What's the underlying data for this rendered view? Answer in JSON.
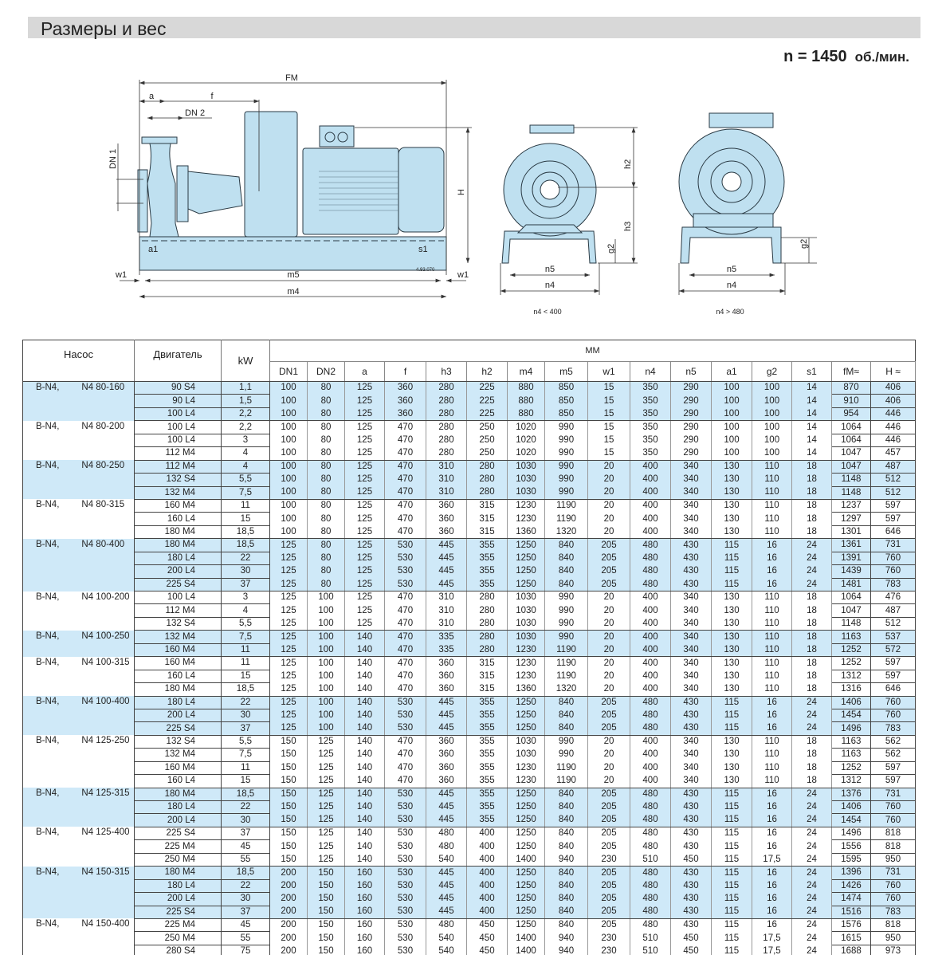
{
  "header": {
    "title": "Размеры и вес",
    "speed": "n = 1450",
    "speed_unit": "об./мин."
  },
  "drawing": {
    "labels": {
      "FM": "FM",
      "a": "a",
      "f": "f",
      "DN2": "DN 2",
      "DN1": "DN 1",
      "H": "H",
      "a1": "a1",
      "s1": "s1",
      "w1": "w1",
      "m5": "m5",
      "m4": "m4",
      "code": "4.93.070",
      "h2": "h2",
      "h3": "h3",
      "g2": "g2",
      "n5": "n5",
      "n4": "n4",
      "cap_front": "n4 < 400",
      "cap_rear": "n4 > 480"
    },
    "colors": {
      "fill": "#bfe0f0",
      "stroke": "#2a3a44"
    }
  },
  "table": {
    "headers": {
      "pump": "Насос",
      "motor": "Двигатель",
      "kw": "kW",
      "mm": "MM"
    },
    "columns": [
      "DN1",
      "DN2",
      "a",
      "f",
      "h3",
      "h2",
      "m4",
      "m5",
      "w1",
      "n4",
      "n5",
      "a1",
      "g2",
      "s1",
      "fM≈",
      "H ≈"
    ],
    "shade_color": "#cfe9f8",
    "groups": [
      {
        "series": "B-N4,",
        "model": "N4 80-160",
        "rows": [
          [
            "90 S4",
            "1,1",
            "100",
            "80",
            "125",
            "360",
            "280",
            "225",
            "880",
            "850",
            "15",
            "350",
            "290",
            "100",
            "100",
            "14",
            "870",
            "406"
          ],
          [
            "90 L4",
            "1,5",
            "100",
            "80",
            "125",
            "360",
            "280",
            "225",
            "880",
            "850",
            "15",
            "350",
            "290",
            "100",
            "100",
            "14",
            "910",
            "406"
          ],
          [
            "100 L4",
            "2,2",
            "100",
            "80",
            "125",
            "360",
            "280",
            "225",
            "880",
            "850",
            "15",
            "350",
            "290",
            "100",
            "100",
            "14",
            "954",
            "446"
          ]
        ]
      },
      {
        "series": "B-N4,",
        "model": "N4 80-200",
        "rows": [
          [
            "100 L4",
            "2,2",
            "100",
            "80",
            "125",
            "470",
            "280",
            "250",
            "1020",
            "990",
            "15",
            "350",
            "290",
            "100",
            "100",
            "14",
            "1064",
            "446"
          ],
          [
            "100 L4",
            "3",
            "100",
            "80",
            "125",
            "470",
            "280",
            "250",
            "1020",
            "990",
            "15",
            "350",
            "290",
            "100",
            "100",
            "14",
            "1064",
            "446"
          ],
          [
            "112 M4",
            "4",
            "100",
            "80",
            "125",
            "470",
            "280",
            "250",
            "1020",
            "990",
            "15",
            "350",
            "290",
            "100",
            "100",
            "14",
            "1047",
            "457"
          ]
        ]
      },
      {
        "series": "B-N4,",
        "model": "N4 80-250",
        "rows": [
          [
            "112 M4",
            "4",
            "100",
            "80",
            "125",
            "470",
            "310",
            "280",
            "1030",
            "990",
            "20",
            "400",
            "340",
            "130",
            "110",
            "18",
            "1047",
            "487"
          ],
          [
            "132 S4",
            "5,5",
            "100",
            "80",
            "125",
            "470",
            "310",
            "280",
            "1030",
            "990",
            "20",
            "400",
            "340",
            "130",
            "110",
            "18",
            "1148",
            "512"
          ],
          [
            "132 M4",
            "7,5",
            "100",
            "80",
            "125",
            "470",
            "310",
            "280",
            "1030",
            "990",
            "20",
            "400",
            "340",
            "130",
            "110",
            "18",
            "1148",
            "512"
          ]
        ]
      },
      {
        "series": "B-N4,",
        "model": "N4 80-315",
        "rows": [
          [
            "160 M4",
            "11",
            "100",
            "80",
            "125",
            "470",
            "360",
            "315",
            "1230",
            "1190",
            "20",
            "400",
            "340",
            "130",
            "110",
            "18",
            "1237",
            "597"
          ],
          [
            "160 L4",
            "15",
            "100",
            "80",
            "125",
            "470",
            "360",
            "315",
            "1230",
            "1190",
            "20",
            "400",
            "340",
            "130",
            "110",
            "18",
            "1297",
            "597"
          ],
          [
            "180 M4",
            "18,5",
            "100",
            "80",
            "125",
            "470",
            "360",
            "315",
            "1360",
            "1320",
            "20",
            "400",
            "340",
            "130",
            "110",
            "18",
            "1301",
            "646"
          ]
        ]
      },
      {
        "series": "B-N4,",
        "model": "N4 80-400",
        "rows": [
          [
            "180 M4",
            "18,5",
            "125",
            "80",
            "125",
            "530",
            "445",
            "355",
            "1250",
            "840",
            "205",
            "480",
            "430",
            "115",
            "16",
            "24",
            "1361",
            "731"
          ],
          [
            "180 L4",
            "22",
            "125",
            "80",
            "125",
            "530",
            "445",
            "355",
            "1250",
            "840",
            "205",
            "480",
            "430",
            "115",
            "16",
            "24",
            "1391",
            "760"
          ],
          [
            "200 L4",
            "30",
            "125",
            "80",
            "125",
            "530",
            "445",
            "355",
            "1250",
            "840",
            "205",
            "480",
            "430",
            "115",
            "16",
            "24",
            "1439",
            "760"
          ],
          [
            "225 S4",
            "37",
            "125",
            "80",
            "125",
            "530",
            "445",
            "355",
            "1250",
            "840",
            "205",
            "480",
            "430",
            "115",
            "16",
            "24",
            "1481",
            "783"
          ]
        ]
      },
      {
        "series": "B-N4,",
        "model": "N4 100-200",
        "rows": [
          [
            "100 L4",
            "3",
            "125",
            "100",
            "125",
            "470",
            "310",
            "280",
            "1030",
            "990",
            "20",
            "400",
            "340",
            "130",
            "110",
            "18",
            "1064",
            "476"
          ],
          [
            "112 M4",
            "4",
            "125",
            "100",
            "125",
            "470",
            "310",
            "280",
            "1030",
            "990",
            "20",
            "400",
            "340",
            "130",
            "110",
            "18",
            "1047",
            "487"
          ],
          [
            "132 S4",
            "5,5",
            "125",
            "100",
            "125",
            "470",
            "310",
            "280",
            "1030",
            "990",
            "20",
            "400",
            "340",
            "130",
            "110",
            "18",
            "1148",
            "512"
          ]
        ]
      },
      {
        "series": "B-N4,",
        "model": "N4 100-250",
        "rows": [
          [
            "132 M4",
            "7,5",
            "125",
            "100",
            "140",
            "470",
            "335",
            "280",
            "1030",
            "990",
            "20",
            "400",
            "340",
            "130",
            "110",
            "18",
            "1163",
            "537"
          ],
          [
            "160 M4",
            "11",
            "125",
            "100",
            "140",
            "470",
            "335",
            "280",
            "1230",
            "1190",
            "20",
            "400",
            "340",
            "130",
            "110",
            "18",
            "1252",
            "572"
          ]
        ]
      },
      {
        "series": "B-N4,",
        "model": "N4 100-315",
        "rows": [
          [
            "160 M4",
            "11",
            "125",
            "100",
            "140",
            "470",
            "360",
            "315",
            "1230",
            "1190",
            "20",
            "400",
            "340",
            "130",
            "110",
            "18",
            "1252",
            "597"
          ],
          [
            "160 L4",
            "15",
            "125",
            "100",
            "140",
            "470",
            "360",
            "315",
            "1230",
            "1190",
            "20",
            "400",
            "340",
            "130",
            "110",
            "18",
            "1312",
            "597"
          ],
          [
            "180 M4",
            "18,5",
            "125",
            "100",
            "140",
            "470",
            "360",
            "315",
            "1360",
            "1320",
            "20",
            "400",
            "340",
            "130",
            "110",
            "18",
            "1316",
            "646"
          ]
        ]
      },
      {
        "series": "B-N4,",
        "model": "N4 100-400",
        "rows": [
          [
            "180 L4",
            "22",
            "125",
            "100",
            "140",
            "530",
            "445",
            "355",
            "1250",
            "840",
            "205",
            "480",
            "430",
            "115",
            "16",
            "24",
            "1406",
            "760"
          ],
          [
            "200 L4",
            "30",
            "125",
            "100",
            "140",
            "530",
            "445",
            "355",
            "1250",
            "840",
            "205",
            "480",
            "430",
            "115",
            "16",
            "24",
            "1454",
            "760"
          ],
          [
            "225 S4",
            "37",
            "125",
            "100",
            "140",
            "530",
            "445",
            "355",
            "1250",
            "840",
            "205",
            "480",
            "430",
            "115",
            "16",
            "24",
            "1496",
            "783"
          ]
        ]
      },
      {
        "series": "B-N4,",
        "model": "N4 125-250",
        "rows": [
          [
            "132 S4",
            "5,5",
            "150",
            "125",
            "140",
            "470",
            "360",
            "355",
            "1030",
            "990",
            "20",
            "400",
            "340",
            "130",
            "110",
            "18",
            "1163",
            "562"
          ],
          [
            "132 M4",
            "7,5",
            "150",
            "125",
            "140",
            "470",
            "360",
            "355",
            "1030",
            "990",
            "20",
            "400",
            "340",
            "130",
            "110",
            "18",
            "1163",
            "562"
          ],
          [
            "160 M4",
            "11",
            "150",
            "125",
            "140",
            "470",
            "360",
            "355",
            "1230",
            "1190",
            "20",
            "400",
            "340",
            "130",
            "110",
            "18",
            "1252",
            "597"
          ],
          [
            "160 L4",
            "15",
            "150",
            "125",
            "140",
            "470",
            "360",
            "355",
            "1230",
            "1190",
            "20",
            "400",
            "340",
            "130",
            "110",
            "18",
            "1312",
            "597"
          ]
        ]
      },
      {
        "series": "B-N4,",
        "model": "N4 125-315",
        "rows": [
          [
            "180 M4",
            "18,5",
            "150",
            "125",
            "140",
            "530",
            "445",
            "355",
            "1250",
            "840",
            "205",
            "480",
            "430",
            "115",
            "16",
            "24",
            "1376",
            "731"
          ],
          [
            "180 L4",
            "22",
            "150",
            "125",
            "140",
            "530",
            "445",
            "355",
            "1250",
            "840",
            "205",
            "480",
            "430",
            "115",
            "16",
            "24",
            "1406",
            "760"
          ],
          [
            "200 L4",
            "30",
            "150",
            "125",
            "140",
            "530",
            "445",
            "355",
            "1250",
            "840",
            "205",
            "480",
            "430",
            "115",
            "16",
            "24",
            "1454",
            "760"
          ]
        ]
      },
      {
        "series": "B-N4,",
        "model": "N4 125-400",
        "rows": [
          [
            "225 S4",
            "37",
            "150",
            "125",
            "140",
            "530",
            "480",
            "400",
            "1250",
            "840",
            "205",
            "480",
            "430",
            "115",
            "16",
            "24",
            "1496",
            "818"
          ],
          [
            "225 M4",
            "45",
            "150",
            "125",
            "140",
            "530",
            "480",
            "400",
            "1250",
            "840",
            "205",
            "480",
            "430",
            "115",
            "16",
            "24",
            "1556",
            "818"
          ],
          [
            "250 M4",
            "55",
            "150",
            "125",
            "140",
            "530",
            "540",
            "400",
            "1400",
            "940",
            "230",
            "510",
            "450",
            "115",
            "17,5",
            "24",
            "1595",
            "950"
          ]
        ]
      },
      {
        "series": "B-N4,",
        "model": "N4 150-315",
        "rows": [
          [
            "180 M4",
            "18,5",
            "200",
            "150",
            "160",
            "530",
            "445",
            "400",
            "1250",
            "840",
            "205",
            "480",
            "430",
            "115",
            "16",
            "24",
            "1396",
            "731"
          ],
          [
            "180 L4",
            "22",
            "200",
            "150",
            "160",
            "530",
            "445",
            "400",
            "1250",
            "840",
            "205",
            "480",
            "430",
            "115",
            "16",
            "24",
            "1426",
            "760"
          ],
          [
            "200 L4",
            "30",
            "200",
            "150",
            "160",
            "530",
            "445",
            "400",
            "1250",
            "840",
            "205",
            "480",
            "430",
            "115",
            "16",
            "24",
            "1474",
            "760"
          ],
          [
            "225 S4",
            "37",
            "200",
            "150",
            "160",
            "530",
            "445",
            "400",
            "1250",
            "840",
            "205",
            "480",
            "430",
            "115",
            "16",
            "24",
            "1516",
            "783"
          ]
        ]
      },
      {
        "series": "B-N4,",
        "model": "N4 150-400",
        "rows": [
          [
            "225 M4",
            "45",
            "200",
            "150",
            "160",
            "530",
            "480",
            "450",
            "1250",
            "840",
            "205",
            "480",
            "430",
            "115",
            "16",
            "24",
            "1576",
            "818"
          ],
          [
            "250 M4",
            "55",
            "200",
            "150",
            "160",
            "530",
            "540",
            "450",
            "1400",
            "940",
            "230",
            "510",
            "450",
            "115",
            "17,5",
            "24",
            "1615",
            "950"
          ],
          [
            "280 S4",
            "75",
            "200",
            "150",
            "160",
            "530",
            "540",
            "450",
            "1400",
            "940",
            "230",
            "510",
            "450",
            "115",
            "17,5",
            "24",
            "1688",
            "973"
          ]
        ]
      }
    ]
  }
}
